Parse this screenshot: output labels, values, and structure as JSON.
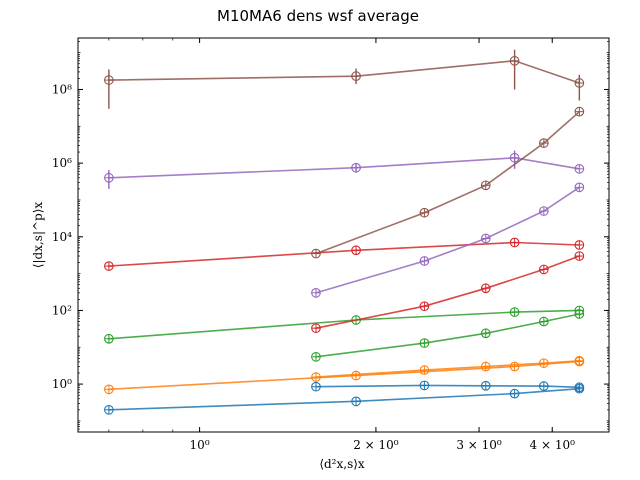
{
  "chart_data": {
    "type": "line",
    "title": "M10MA6 dens wsf average",
    "xlabel": "⟨d²x,s⟩x",
    "ylabel": "⟨|dx,s|^p⟩x",
    "x_scale": "log",
    "y_scale": "log",
    "xlim": [
      0.62,
      5.0
    ],
    "ylim": [
      0.05,
      2500000000
    ],
    "grid": false,
    "x_ticks": [
      {
        "value": 1,
        "label": "10⁰"
      },
      {
        "value": 2,
        "label": "2 × 10⁰"
      },
      {
        "value": 3,
        "label": "3 × 10⁰"
      },
      {
        "value": 4,
        "label": "4 × 10⁰"
      }
    ],
    "y_ticks": [
      {
        "value": 1,
        "label": "10⁰"
      },
      {
        "value": 100,
        "label": "10²"
      },
      {
        "value": 10000,
        "label": "10⁴"
      },
      {
        "value": 1000000,
        "label": "10⁶"
      },
      {
        "value": 100000000,
        "label": "10⁸"
      }
    ],
    "series": [
      {
        "color": "#1f77b4",
        "points": [
          {
            "x": 0.7,
            "y": 0.2
          },
          {
            "x": 1.85,
            "y": 0.34
          },
          {
            "x": 3.45,
            "y": 0.55
          },
          {
            "x": 4.45,
            "y": 0.75
          }
        ]
      },
      {
        "color": "#1f77b4",
        "points": [
          {
            "x": 1.58,
            "y": 0.85
          },
          {
            "x": 2.42,
            "y": 0.92
          },
          {
            "x": 3.08,
            "y": 0.9
          },
          {
            "x": 3.87,
            "y": 0.88
          },
          {
            "x": 4.45,
            "y": 0.82
          }
        ]
      },
      {
        "color": "#ff7f0e",
        "points": [
          {
            "x": 0.7,
            "y": 0.72
          },
          {
            "x": 1.85,
            "y": 1.7
          },
          {
            "x": 3.45,
            "y": 3.0
          },
          {
            "x": 4.45,
            "y": 4.1
          }
        ]
      },
      {
        "color": "#ff7f0e",
        "points": [
          {
            "x": 1.58,
            "y": 1.55
          },
          {
            "x": 2.42,
            "y": 2.4
          },
          {
            "x": 3.08,
            "y": 3.0
          },
          {
            "x": 3.87,
            "y": 3.7
          },
          {
            "x": 4.45,
            "y": 4.3
          }
        ]
      },
      {
        "color": "#2ca02c",
        "points": [
          {
            "x": 0.7,
            "y": 17
          },
          {
            "x": 1.85,
            "y": 55
          },
          {
            "x": 3.45,
            "y": 90
          },
          {
            "x": 4.45,
            "y": 100
          }
        ]
      },
      {
        "color": "#2ca02c",
        "points": [
          {
            "x": 1.58,
            "y": 5.5
          },
          {
            "x": 2.42,
            "y": 13
          },
          {
            "x": 3.08,
            "y": 24
          },
          {
            "x": 3.87,
            "y": 50
          },
          {
            "x": 4.45,
            "y": 80
          }
        ]
      },
      {
        "color": "#d62728",
        "points": [
          {
            "x": 0.7,
            "y": 1600
          },
          {
            "x": 1.85,
            "y": 4300
          },
          {
            "x": 3.45,
            "y": 7000
          },
          {
            "x": 4.45,
            "y": 6000
          }
        ]
      },
      {
        "color": "#d62728",
        "points": [
          {
            "x": 1.58,
            "y": 33
          },
          {
            "x": 2.42,
            "y": 130
          },
          {
            "x": 3.08,
            "y": 400
          },
          {
            "x": 3.87,
            "y": 1300
          },
          {
            "x": 4.45,
            "y": 3000
          }
        ]
      },
      {
        "color": "#9467bd",
        "points": [
          {
            "x": 0.7,
            "y": 400000
          },
          {
            "x": 1.85,
            "y": 750000
          },
          {
            "x": 3.45,
            "y": 1400000
          },
          {
            "x": 4.45,
            "y": 700000
          }
        ]
      },
      {
        "color": "#9467bd",
        "points": [
          {
            "x": 1.58,
            "y": 300
          },
          {
            "x": 2.42,
            "y": 2200
          },
          {
            "x": 3.08,
            "y": 9000
          },
          {
            "x": 3.87,
            "y": 50000
          },
          {
            "x": 4.45,
            "y": 220000
          }
        ]
      },
      {
        "color": "#8c564b",
        "points": [
          {
            "x": 0.7,
            "y": 180000000
          },
          {
            "x": 1.85,
            "y": 230000000
          },
          {
            "x": 3.45,
            "y": 600000000
          },
          {
            "x": 4.45,
            "y": 150000000
          }
        ]
      },
      {
        "color": "#8c564b",
        "points": [
          {
            "x": 1.58,
            "y": 3500
          },
          {
            "x": 2.42,
            "y": 45000
          },
          {
            "x": 3.08,
            "y": 250000
          },
          {
            "x": 3.87,
            "y": 3500000
          },
          {
            "x": 4.45,
            "y": 25000000
          }
        ]
      }
    ],
    "errorbars": [
      {
        "color": "#8c564b",
        "x": 0.7,
        "y_low": 30000000,
        "y_high": 350000000
      },
      {
        "color": "#8c564b",
        "x": 1.85,
        "y_low": 140000000,
        "y_high": 370000000
      },
      {
        "color": "#8c564b",
        "x": 3.45,
        "y_low": 100000000,
        "y_high": 1200000000
      },
      {
        "color": "#8c564b",
        "x": 4.45,
        "y_low": 50000000,
        "y_high": 250000000
      },
      {
        "color": "#9467bd",
        "x": 0.7,
        "y_low": 200000,
        "y_high": 650000
      },
      {
        "color": "#9467bd",
        "x": 1.85,
        "y_low": 550000,
        "y_high": 1000000
      },
      {
        "color": "#9467bd",
        "x": 3.45,
        "y_low": 700000,
        "y_high": 2200000
      }
    ]
  }
}
